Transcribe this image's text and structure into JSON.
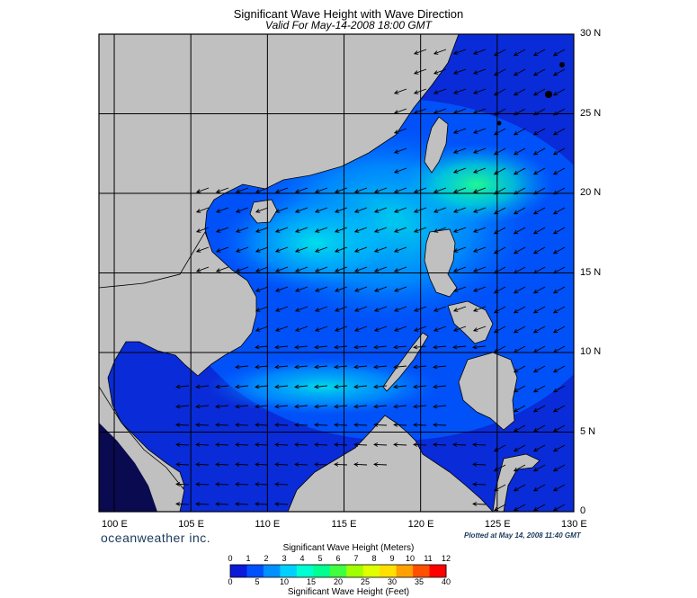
{
  "header": {
    "title": "Significant Wave Height with Wave Direction",
    "subtitle": "Valid For May-14-2008 18:00 GMT"
  },
  "map": {
    "lon_range": [
      99,
      130
    ],
    "lat_range": [
      0,
      30
    ],
    "lon_ticks": [
      "100 E",
      "105 E",
      "110 E",
      "115 E",
      "120 E",
      "125 E",
      "130 E"
    ],
    "lat_ticks": [
      "30 N",
      "25 N",
      "20 N",
      "15 N",
      "10 N",
      "5 N",
      "0"
    ],
    "land_color": "#c0c0c0",
    "ocean_low_color": "#0a2bd8",
    "grid": true
  },
  "footer": {
    "brand": "oceanweather inc.",
    "plotted": "Plotted at May 14, 2008 11:40 GMT"
  },
  "colorbar": {
    "title_top": "Significant Wave Height (Meters)",
    "title_bottom": "Significant Wave Height (Feet)",
    "meters": [
      "0",
      "1",
      "2",
      "3",
      "4",
      "5",
      "6",
      "7",
      "8",
      "9",
      "10",
      "11",
      "12"
    ],
    "feet": [
      "0",
      "5",
      "10",
      "15",
      "20",
      "25",
      "30",
      "35",
      "40"
    ],
    "colors": [
      "#0a1ad8",
      "#0050ff",
      "#0090ff",
      "#00d0ff",
      "#00ffd0",
      "#00ff90",
      "#40ff40",
      "#a0ff00",
      "#e0ff00",
      "#ffe000",
      "#ffa000",
      "#ff5000",
      "#ff0000"
    ]
  }
}
